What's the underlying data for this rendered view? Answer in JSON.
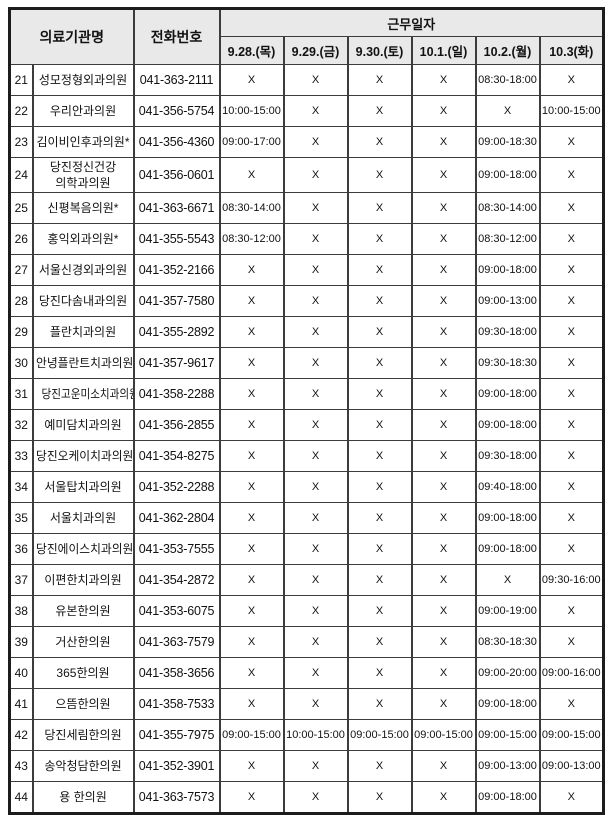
{
  "header": {
    "col_institution": "의료기관명",
    "col_phone": "전화번호",
    "col_workdates": "근무일자",
    "dates": [
      "9.28.(목)",
      "9.29.(금)",
      "9.30.(토)",
      "10.1.(일)",
      "10.2.(월)",
      "10.3(화)"
    ]
  },
  "rows": [
    {
      "no": "21",
      "name": "성모정형외과의원",
      "phone": "041-363-2111",
      "schedule": [
        "X",
        "X",
        "X",
        "X",
        "08:30-18:00",
        "X"
      ]
    },
    {
      "no": "22",
      "name": "우리안과의원",
      "phone": "041-356-5754",
      "schedule": [
        "10:00-15:00",
        "X",
        "X",
        "X",
        "X",
        "10:00-15:00"
      ]
    },
    {
      "no": "23",
      "name": "김이비인후과의원*",
      "phone": "041-356-4360",
      "schedule": [
        "09:00-17:00",
        "X",
        "X",
        "X",
        "09:00-18:30",
        "X"
      ]
    },
    {
      "no": "24",
      "name": "당진정신건강\n의학과의원",
      "phone": "041-356-0601",
      "schedule": [
        "X",
        "X",
        "X",
        "X",
        "09:00-18:00",
        "X"
      ]
    },
    {
      "no": "25",
      "name": "신평복음의원*",
      "phone": "041-363-6671",
      "schedule": [
        "08:30-14:00",
        "X",
        "X",
        "X",
        "08:30-14:00",
        "X"
      ]
    },
    {
      "no": "26",
      "name": "홍익외과의원*",
      "phone": "041-355-5543",
      "schedule": [
        "08:30-12:00",
        "X",
        "X",
        "X",
        "08:30-12:00",
        "X"
      ]
    },
    {
      "no": "27",
      "name": "서울신경외과의원",
      "phone": "041-352-2166",
      "schedule": [
        "X",
        "X",
        "X",
        "X",
        "09:00-18:00",
        "X"
      ]
    },
    {
      "no": "28",
      "name": "당진다솜내과의원",
      "phone": "041-357-7580",
      "schedule": [
        "X",
        "X",
        "X",
        "X",
        "09:00-13:00",
        "X"
      ]
    },
    {
      "no": "29",
      "name": "플란치과의원",
      "phone": "041-355-2892",
      "schedule": [
        "X",
        "X",
        "X",
        "X",
        "09:30-18:00",
        "X"
      ]
    },
    {
      "no": "30",
      "name": "안녕플란트치과의원",
      "phone": "041-357-9617",
      "schedule": [
        "X",
        "X",
        "X",
        "X",
        "09:30-18:30",
        "X"
      ]
    },
    {
      "no": "31",
      "name": "당진고운미소치과의원",
      "phone": "041-358-2288",
      "schedule": [
        "X",
        "X",
        "X",
        "X",
        "09:00-18:00",
        "X"
      ]
    },
    {
      "no": "32",
      "name": "예미담치과의원",
      "phone": "041-356-2855",
      "schedule": [
        "X",
        "X",
        "X",
        "X",
        "09:00-18:00",
        "X"
      ]
    },
    {
      "no": "33",
      "name": "당진오케이치과의원",
      "phone": "041-354-8275",
      "schedule": [
        "X",
        "X",
        "X",
        "X",
        "09:30-18:00",
        "X"
      ]
    },
    {
      "no": "34",
      "name": "서울탑치과의원",
      "phone": "041-352-2288",
      "schedule": [
        "X",
        "X",
        "X",
        "X",
        "09:40-18:00",
        "X"
      ]
    },
    {
      "no": "35",
      "name": "서울치과의원",
      "phone": "041-362-2804",
      "schedule": [
        "X",
        "X",
        "X",
        "X",
        "09:00-18:00",
        "X"
      ]
    },
    {
      "no": "36",
      "name": "당진에이스치과의원",
      "phone": "041-353-7555",
      "schedule": [
        "X",
        "X",
        "X",
        "X",
        "09:00-18:00",
        "X"
      ]
    },
    {
      "no": "37",
      "name": "이편한치과의원",
      "phone": "041-354-2872",
      "schedule": [
        "X",
        "X",
        "X",
        "X",
        "X",
        "09:30-16:00"
      ]
    },
    {
      "no": "38",
      "name": "유본한의원",
      "phone": "041-353-6075",
      "schedule": [
        "X",
        "X",
        "X",
        "X",
        "09:00-19:00",
        "X"
      ]
    },
    {
      "no": "39",
      "name": "거산한의원",
      "phone": "041-363-7579",
      "schedule": [
        "X",
        "X",
        "X",
        "X",
        "08:30-18:30",
        "X"
      ]
    },
    {
      "no": "40",
      "name": "365한의원",
      "phone": "041-358-3656",
      "schedule": [
        "X",
        "X",
        "X",
        "X",
        "09:00-20:00",
        "09:00-16:00"
      ]
    },
    {
      "no": "41",
      "name": "으뜸한의원",
      "phone": "041-358-7533",
      "schedule": [
        "X",
        "X",
        "X",
        "X",
        "09:00-18:00",
        "X"
      ]
    },
    {
      "no": "42",
      "name": "당진세림한의원",
      "phone": "041-355-7975",
      "schedule": [
        "09:00-15:00",
        "10:00-15:00",
        "09:00-15:00",
        "09:00-15:00",
        "09:00-15:00",
        "09:00-15:00"
      ]
    },
    {
      "no": "43",
      "name": "송악청담한의원",
      "phone": "041-352-3901",
      "schedule": [
        "X",
        "X",
        "X",
        "X",
        "09:00-13:00",
        "09:00-13:00"
      ]
    },
    {
      "no": "44",
      "name": "용 한의원",
      "phone": "041-363-7573",
      "schedule": [
        "X",
        "X",
        "X",
        "X",
        "09:00-18:00",
        "X"
      ]
    }
  ]
}
